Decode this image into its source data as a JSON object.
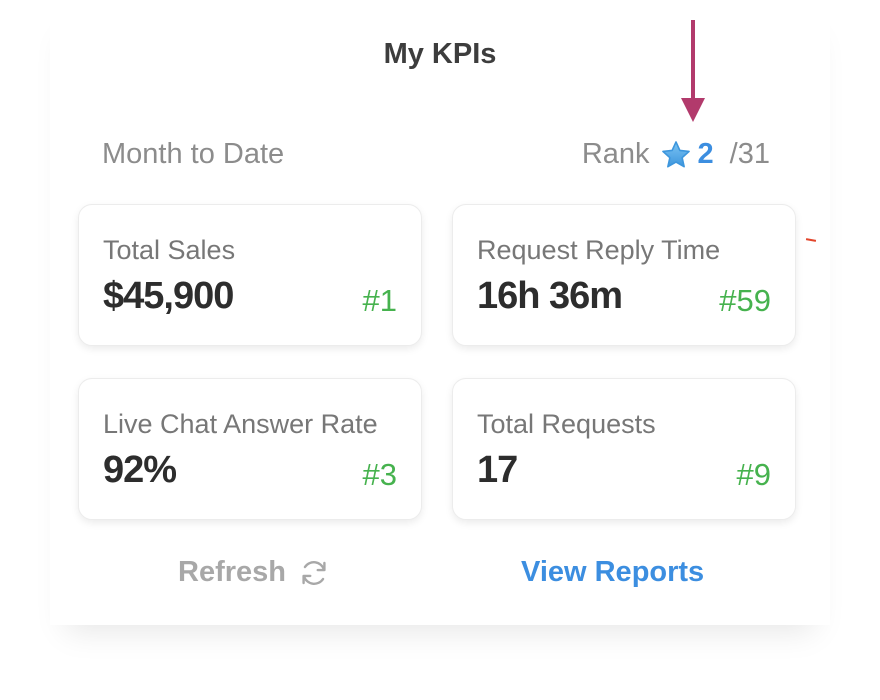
{
  "title": "My KPIs",
  "period": "Month to Date",
  "rank": {
    "label": "Rank",
    "value": "2",
    "total": "/31",
    "icon": "star-icon",
    "star_color": "#5ab0ee"
  },
  "cards": [
    {
      "label": "Total Sales",
      "value": "$45,900",
      "rank": "#1"
    },
    {
      "label": "Request Reply Time",
      "value": "16h 36m",
      "rank": "#59"
    },
    {
      "label": "Live Chat Answer Rate",
      "value": "92%",
      "rank": "#3"
    },
    {
      "label": "Total Requests",
      "value": "17",
      "rank": "#9"
    }
  ],
  "actions": {
    "refresh_label": "Refresh",
    "refresh_icon": "refresh-icon",
    "view_reports_label": "View Reports"
  },
  "colors": {
    "accent": "#3c8ee0",
    "rank_positive": "#46b24e",
    "annotation_arrow": "#b23a6c"
  }
}
